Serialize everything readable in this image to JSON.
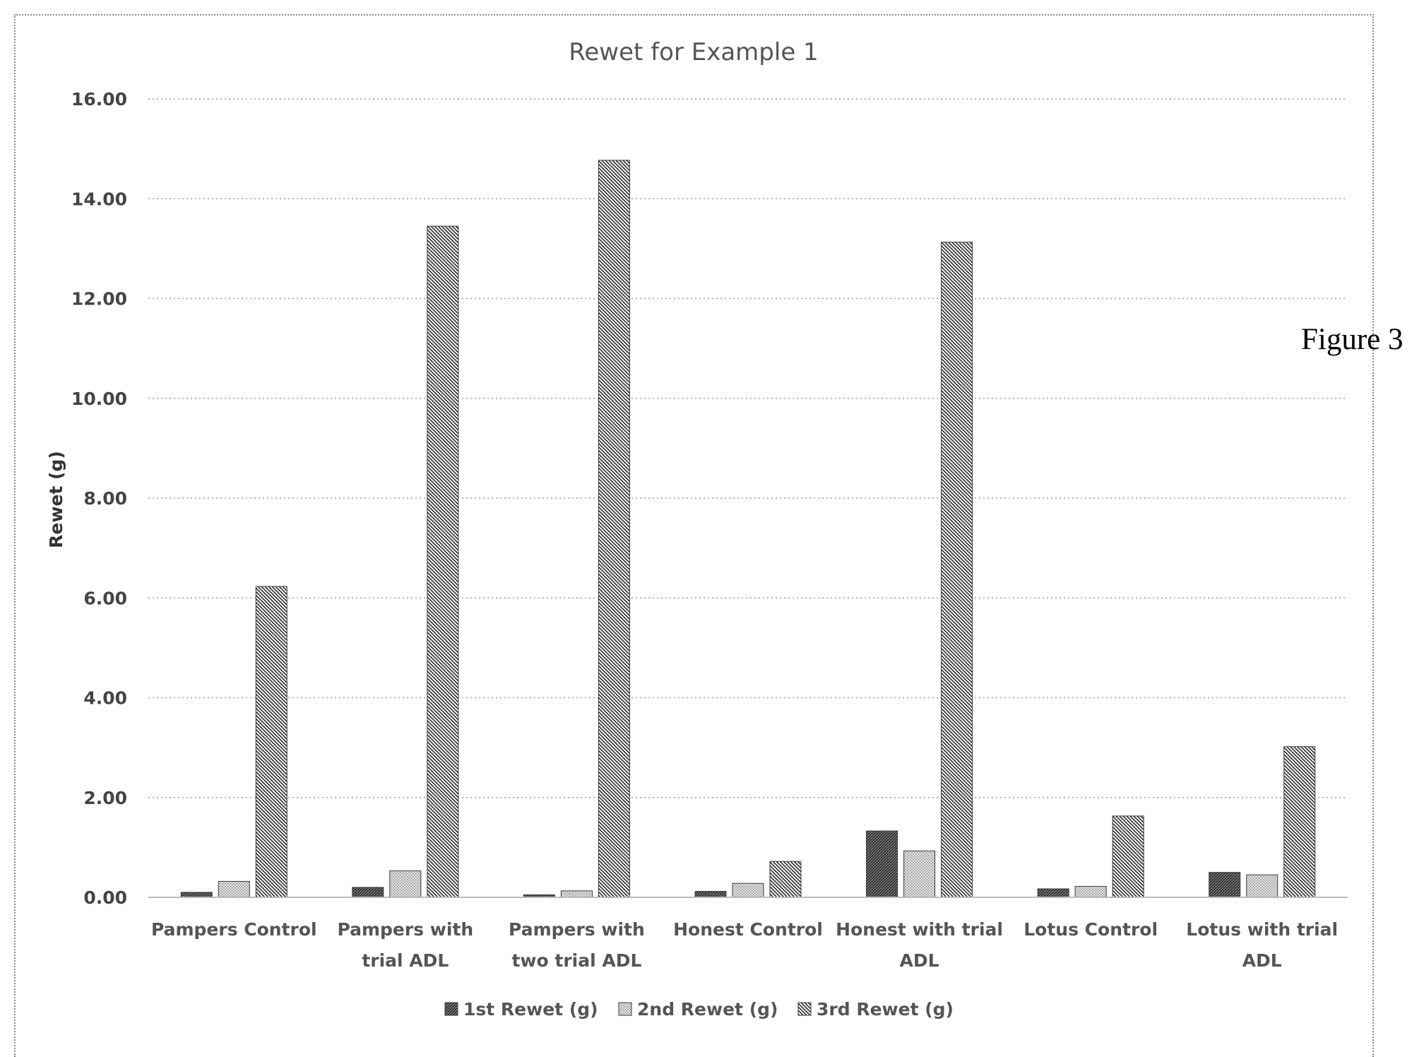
{
  "figure_label": "Figure 3",
  "chart_data": {
    "type": "bar",
    "title": "Rewet for Example 1",
    "xlabel": "",
    "ylabel": "Rewet (g)",
    "ylim": [
      0,
      16
    ],
    "yticks": [
      "0.00",
      "2.00",
      "4.00",
      "6.00",
      "8.00",
      "10.00",
      "12.00",
      "14.00",
      "16.00"
    ],
    "grid": true,
    "legend_position": "bottom",
    "categories": [
      [
        "Pampers Control"
      ],
      [
        "Pampers with",
        "trial ADL"
      ],
      [
        "Pampers with",
        "two trial ADL"
      ],
      [
        "Honest Control"
      ],
      [
        "Honest with trial",
        "ADL"
      ],
      [
        "Lotus Control"
      ],
      [
        "Lotus with trial",
        "ADL"
      ]
    ],
    "series": [
      {
        "name": "1st Rewet (g)",
        "values": [
          0.1,
          0.2,
          0.05,
          0.12,
          1.33,
          0.17,
          0.5
        ]
      },
      {
        "name": "2nd Rewet (g)",
        "values": [
          0.32,
          0.53,
          0.13,
          0.28,
          0.93,
          0.22,
          0.45
        ]
      },
      {
        "name": "3rd Rewet (g)",
        "values": [
          6.23,
          13.45,
          14.77,
          0.72,
          13.13,
          1.63,
          3.02
        ]
      }
    ]
  }
}
